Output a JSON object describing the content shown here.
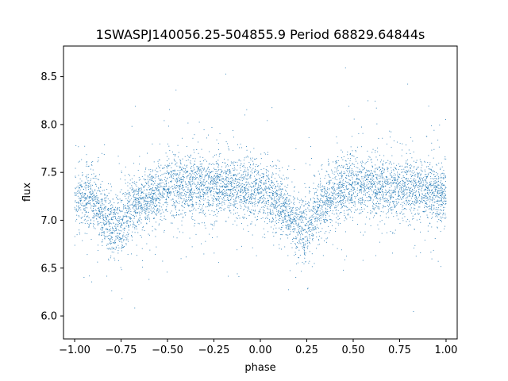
{
  "chart_data": {
    "type": "scatter",
    "title": "1SWASPJ140056.25-504855.9 Period 68829.64844s",
    "xlabel": "phase",
    "ylabel": "flux",
    "xlim": [
      -1.06,
      1.06
    ],
    "ylim": [
      5.76,
      8.82
    ],
    "xticks": [
      -1.0,
      -0.75,
      -0.5,
      -0.25,
      0.0,
      0.25,
      0.5,
      0.75,
      1.0
    ],
    "xtick_labels": [
      "−1.00",
      "−0.75",
      "−0.50",
      "−0.25",
      "0.00",
      "0.25",
      "0.50",
      "0.75",
      "1.00"
    ],
    "yticks": [
      6.0,
      6.5,
      7.0,
      7.5,
      8.0,
      8.5
    ],
    "ytick_labels": [
      "6.0",
      "6.5",
      "7.0",
      "7.5",
      "8.0",
      "8.5"
    ],
    "grid": false,
    "marker_color": "#1f77b4",
    "description_points": {
      "note_series": "phase-folded light curve; points repeat with period 1 in phase",
      "x": [
        -1.0,
        -0.9,
        -0.8,
        -0.75,
        -0.7,
        -0.6,
        -0.5,
        -0.4,
        -0.3,
        -0.2,
        -0.1,
        0.0,
        0.1,
        0.2,
        0.25,
        0.3,
        0.4,
        0.5,
        0.6,
        0.7,
        0.8,
        0.9,
        1.0
      ],
      "y": [
        7.25,
        7.2,
        6.95,
        6.95,
        7.1,
        7.25,
        7.35,
        7.35,
        7.35,
        7.35,
        7.35,
        7.3,
        7.2,
        6.95,
        6.9,
        7.1,
        7.3,
        7.35,
        7.35,
        7.35,
        7.35,
        7.3,
        7.25
      ]
    }
  }
}
